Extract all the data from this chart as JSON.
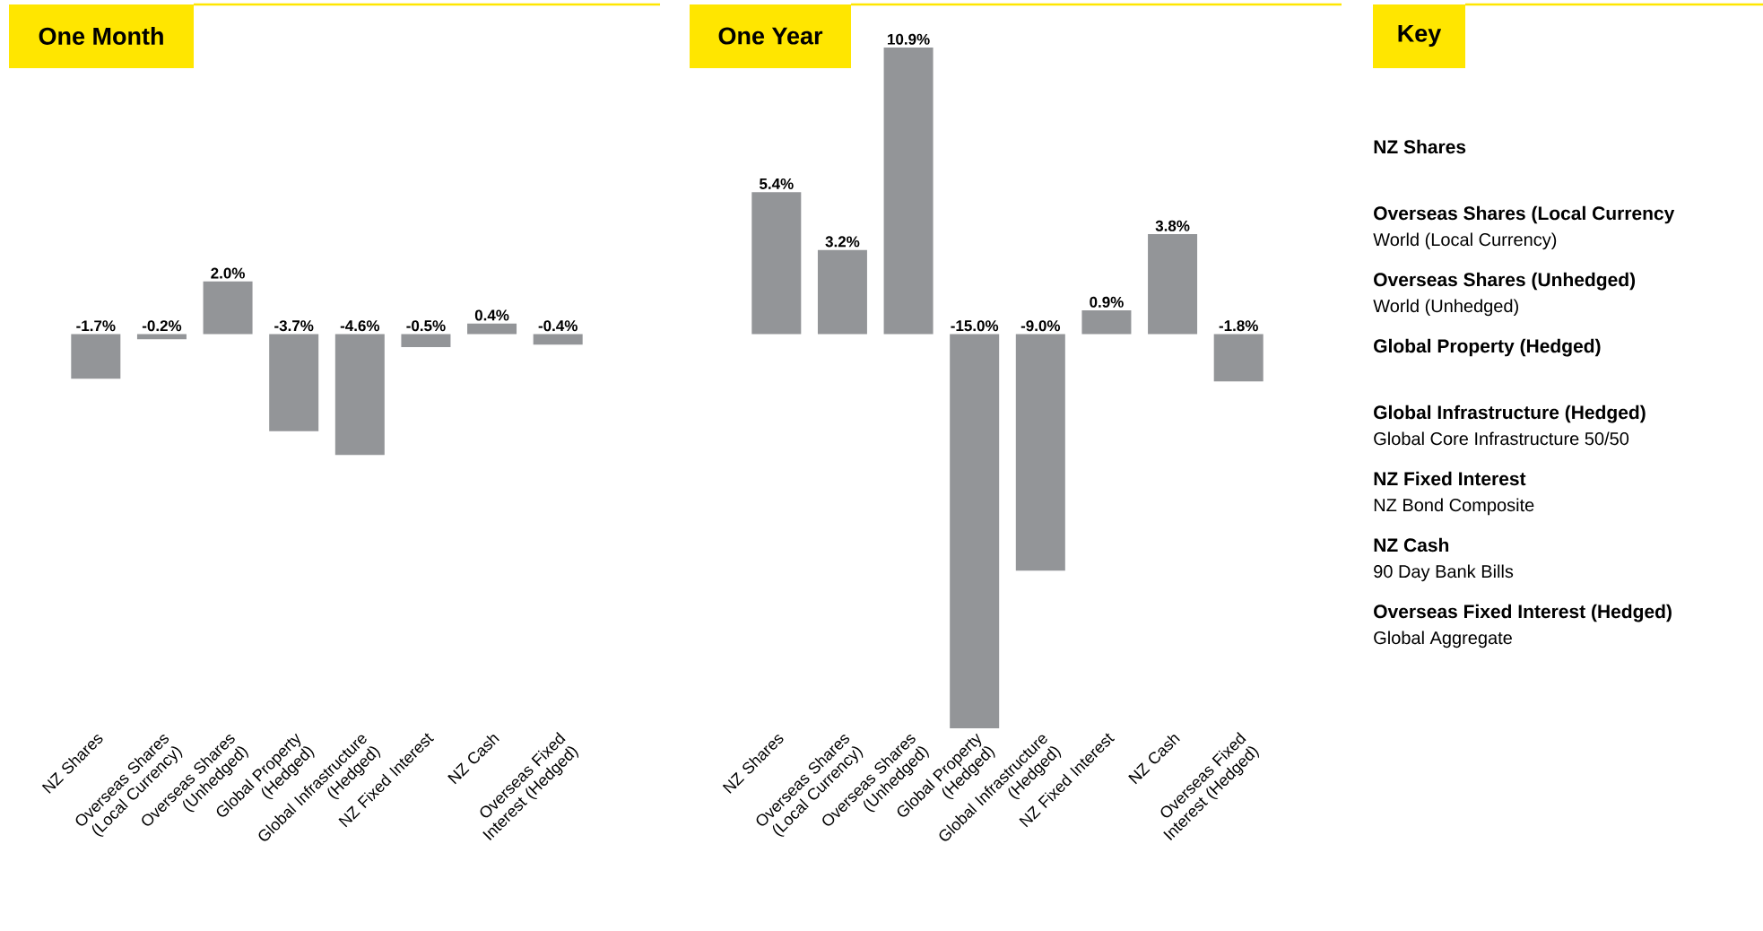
{
  "chart_data": [
    {
      "type": "bar",
      "title": "One Month",
      "categories": [
        "NZ Shares",
        "Overseas Shares (Local Currency)",
        "Overseas Shares (Unhedged)",
        "Global Property (Hedged)",
        "Global Infrastructure (Hedged)",
        "NZ Fixed Interest",
        "NZ Cash",
        "Overseas Fixed Interest (Hedged)"
      ],
      "values": [
        -1.7,
        -0.2,
        2.0,
        -3.7,
        -4.6,
        -0.5,
        0.4,
        -0.4
      ],
      "value_labels": [
        "-1.7%",
        "-0.2%",
        "2.0%",
        "-3.7%",
        "-4.6%",
        "-0.5%",
        "0.4%",
        "-0.4%"
      ],
      "color": "#939598"
    },
    {
      "type": "bar",
      "title": "One Year",
      "categories": [
        "NZ Shares",
        "Overseas Shares (Local Currency)",
        "Overseas Shares (Unhedged)",
        "Global Property (Hedged)",
        "Global Infrastructure (Hedged)",
        "NZ Fixed Interest",
        "NZ Cash",
        "Overseas Fixed Interest (Hedged)"
      ],
      "values": [
        5.4,
        3.2,
        10.9,
        -15.0,
        -9.0,
        0.9,
        3.8,
        -1.8
      ],
      "value_labels": [
        "5.4%",
        "3.2%",
        "10.9%",
        "-15.0%",
        "-9.0%",
        "0.9%",
        "3.8%",
        "-1.8%"
      ],
      "color": "#939598"
    },
    {
      "type": "other",
      "title": "Key",
      "categories": [
        "NZ Shares",
        "Overseas Shares (Local Currency",
        "Overseas Shares (Unhedged)",
        "Global Property (Hedged)",
        "Global Infrastructure (Hedged)",
        "NZ Fixed Interest",
        "NZ Cash",
        "Overseas Fixed Interest (Hedged)"
      ],
      "annotations": [
        null,
        "World (Local Currency)",
        "World (Unhedged)",
        null,
        "Global Core Infrastructure 50/50",
        "NZ Bond Composite",
        "90 Day Bank Bills",
        "Global Aggregate"
      ]
    }
  ]
}
